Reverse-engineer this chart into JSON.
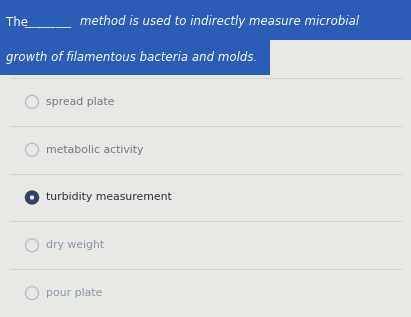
{
  "bg_color": "#e8e8e4",
  "header_bg_color": "#2a5cb8",
  "header_text_color": "#ffffff",
  "header_line1_normal": "The ",
  "header_line1_dashes": "_________ ",
  "header_line1_italic": "method is used to indirectly measure microbial",
  "header_line2": "growth of filamentous bacteria and molds.",
  "header_line2_italic": true,
  "options": [
    {
      "label": "spread plate",
      "selected": false,
      "color": "#777788",
      "italic": false
    },
    {
      "label": "metabolic activity",
      "selected": false,
      "color": "#777788",
      "italic": false
    },
    {
      "label": "turbidity measurement",
      "selected": true,
      "color": "#333344",
      "italic": false
    },
    {
      "label": "dry weight",
      "selected": false,
      "color": "#8899aa",
      "italic": false
    },
    {
      "label": "pour plate",
      "selected": false,
      "color": "#8899aa",
      "italic": false
    }
  ],
  "divider_color": "#cccccc",
  "radio_border_color": "#aabbcc",
  "radio_fill_selected": "#334466",
  "radio_fill_unselected": "#e8e8e4",
  "figsize": [
    4.11,
    3.17
  ],
  "dpi": 100
}
